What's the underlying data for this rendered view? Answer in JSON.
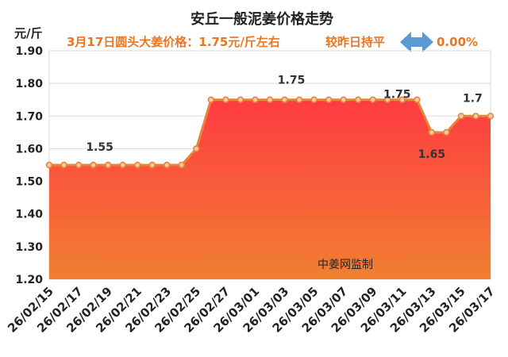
{
  "chart_data": {
    "type": "area",
    "title": "安丘一般泥姜价格走势",
    "subtitle": "3月17日圆头大姜价格：1.75元/斤左右",
    "change_text": "较昨日持平",
    "change_value": "0.00%",
    "ylabel": "元/斤",
    "ylim": [
      1.2,
      1.9
    ],
    "yticks": [
      "1.20",
      "1.30",
      "1.40",
      "1.50",
      "1.60",
      "1.70",
      "1.80",
      "1.90"
    ],
    "x_tick_labels": [
      "26/02/15",
      "26/02/17",
      "26/02/19",
      "26/02/21",
      "26/02/23",
      "26/02/25",
      "26/02/27",
      "26/03/01",
      "26/03/03",
      "26/03/05",
      "26/03/07",
      "26/03/09",
      "26/03/11",
      "26/03/13",
      "26/03/15",
      "26/03/17"
    ],
    "x": [
      "26/02/15",
      "26/02/16",
      "26/02/17",
      "26/02/18",
      "26/02/19",
      "26/02/20",
      "26/02/21",
      "26/02/22",
      "26/02/23",
      "26/02/24",
      "26/02/25",
      "26/02/26",
      "26/02/27",
      "26/02/28",
      "26/03/01",
      "26/03/02",
      "26/03/03",
      "26/03/04",
      "26/03/05",
      "26/03/06",
      "26/03/07",
      "26/03/08",
      "26/03/09",
      "26/03/10",
      "26/03/11",
      "26/03/12",
      "26/03/13",
      "26/03/14",
      "26/03/15",
      "26/03/16",
      "26/03/17"
    ],
    "values": [
      1.55,
      1.55,
      1.55,
      1.55,
      1.55,
      1.55,
      1.55,
      1.55,
      1.55,
      1.55,
      1.6,
      1.75,
      1.75,
      1.75,
      1.75,
      1.75,
      1.75,
      1.75,
      1.75,
      1.75,
      1.75,
      1.75,
      1.75,
      1.75,
      1.75,
      1.75,
      1.65,
      1.65,
      1.7,
      1.7,
      1.7
    ],
    "annotations": [
      {
        "index": 3,
        "text": "1.55"
      },
      {
        "index": 17,
        "text": "1.75"
      },
      {
        "index": 23,
        "text": "1.75"
      },
      {
        "index": 26,
        "text": "1.65"
      },
      {
        "index": 29,
        "text": "1.7"
      }
    ],
    "watermark": "中姜网监制",
    "grid": true,
    "colors": {
      "line": "#e8843a",
      "marker_fill": "#f7c9a0",
      "area_top": "#ff3b42",
      "area_bottom": "#f08030",
      "grid": "#d9d9d9",
      "title": "#222222",
      "subtitle": "#e87722",
      "arrow": "#5b9bd5"
    }
  }
}
